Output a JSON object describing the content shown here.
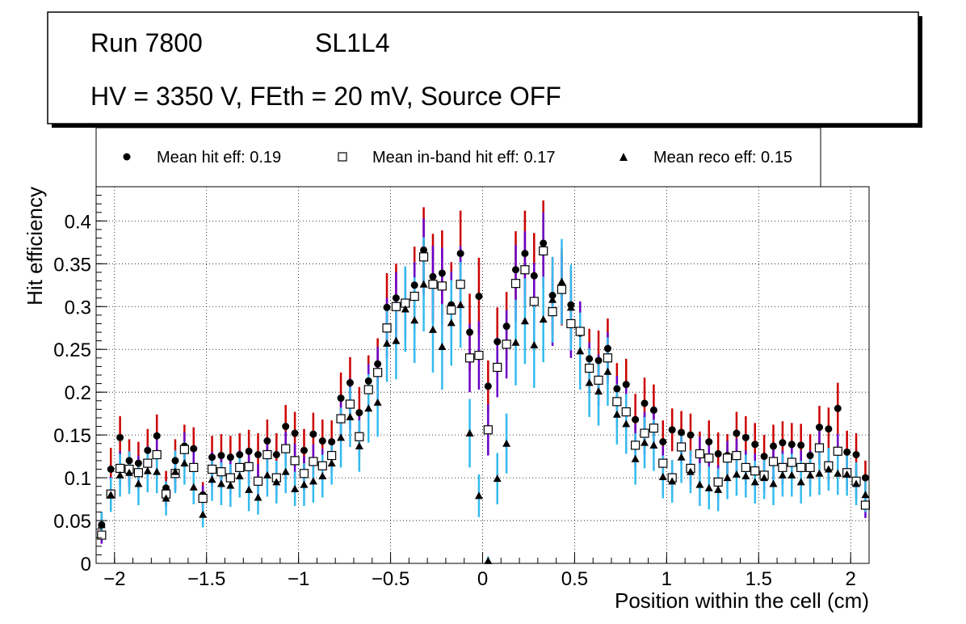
{
  "header": {
    "run_label": "Run 7800",
    "layer_label": "SL1L4",
    "conditions": "HV = 3350 V, FEth = 20 mV, Source OFF"
  },
  "chart_data": {
    "type": "scatter",
    "xlabel": "Position within the cell (cm)",
    "ylabel": "Hit efficiency",
    "xlim": [
      -2.1,
      2.1
    ],
    "ylim": [
      0,
      0.44
    ],
    "grid": true,
    "legend_position": "top",
    "x_ticks": [
      -2,
      -1.5,
      -1,
      -0.5,
      0,
      0.5,
      1,
      1.5,
      2
    ],
    "x_tick_labels": [
      "−2",
      "−1.5",
      "−1",
      "−0.5",
      "0",
      "0.5",
      "1",
      "1.5",
      "2"
    ],
    "y_ticks": [
      0,
      0.05,
      0.1,
      0.15,
      0.2,
      0.25,
      0.3,
      0.35,
      0.4
    ],
    "y_tick_labels": [
      "0",
      "0.05",
      "0.1",
      "0.15",
      "0.2",
      "0.25",
      "0.3",
      "0.35",
      "0.4"
    ],
    "x": [
      -2.07,
      -2.02,
      -1.97,
      -1.92,
      -1.87,
      -1.82,
      -1.77,
      -1.72,
      -1.67,
      -1.62,
      -1.57,
      -1.52,
      -1.47,
      -1.42,
      -1.37,
      -1.32,
      -1.27,
      -1.22,
      -1.17,
      -1.12,
      -1.07,
      -1.02,
      -0.97,
      -0.92,
      -0.87,
      -0.82,
      -0.77,
      -0.72,
      -0.67,
      -0.62,
      -0.57,
      -0.52,
      -0.47,
      -0.42,
      -0.37,
      -0.32,
      -0.27,
      -0.22,
      -0.17,
      -0.12,
      -0.07,
      -0.02,
      0.03,
      0.08,
      0.13,
      0.18,
      0.23,
      0.28,
      0.33,
      0.38,
      0.43,
      0.48,
      0.53,
      0.58,
      0.63,
      0.68,
      0.73,
      0.78,
      0.83,
      0.88,
      0.93,
      0.98,
      1.03,
      1.08,
      1.13,
      1.18,
      1.23,
      1.28,
      1.33,
      1.38,
      1.43,
      1.48,
      1.53,
      1.58,
      1.63,
      1.68,
      1.73,
      1.78,
      1.83,
      1.88,
      1.93,
      1.98,
      2.03,
      2.08
    ],
    "series": [
      {
        "name": "Mean hit  eff: 0.19",
        "marker": "circle",
        "color": "#000000",
        "error_color": "#cc0000",
        "values": [
          0.045,
          0.11,
          0.147,
          0.12,
          0.117,
          0.132,
          0.149,
          0.088,
          0.12,
          0.137,
          0.134,
          0.08,
          0.124,
          0.126,
          0.124,
          0.127,
          0.131,
          0.127,
          0.143,
          0.127,
          0.16,
          0.152,
          0.132,
          0.151,
          0.143,
          0.142,
          0.193,
          0.211,
          0.176,
          0.213,
          0.233,
          0.299,
          0.31,
          0.303,
          0.325,
          0.366,
          0.335,
          0.339,
          0.302,
          0.362,
          0.27,
          0.312,
          0.207,
          0.259,
          0.277,
          0.343,
          0.362,
          0.336,
          0.374,
          0.313,
          0.323,
          0.302,
          0.269,
          0.239,
          0.237,
          0.251,
          0.204,
          0.209,
          0.168,
          0.187,
          0.179,
          0.142,
          0.156,
          0.153,
          0.15,
          0.129,
          0.142,
          0.128,
          0.126,
          0.152,
          0.147,
          0.139,
          0.125,
          0.137,
          0.141,
          0.139,
          0.138,
          0.126,
          0.159,
          0.157,
          0.181,
          0.13,
          0.127,
          0.1
        ],
        "errors": [
          0.015,
          0.025,
          0.025,
          0.025,
          0.025,
          0.025,
          0.025,
          0.02,
          0.025,
          0.025,
          0.025,
          0.015,
          0.025,
          0.025,
          0.025,
          0.025,
          0.025,
          0.025,
          0.025,
          0.025,
          0.025,
          0.025,
          0.025,
          0.025,
          0.025,
          0.025,
          0.03,
          0.03,
          0.03,
          0.03,
          0.03,
          0.04,
          0.04,
          0.04,
          0.045,
          0.05,
          0.05,
          0.05,
          0.05,
          0.05,
          0.045,
          0.045,
          0.03,
          0.04,
          0.04,
          0.045,
          0.05,
          0.05,
          0.05,
          0.045,
          0.045,
          0.04,
          0.035,
          0.035,
          0.035,
          0.035,
          0.03,
          0.03,
          0.03,
          0.03,
          0.03,
          0.025,
          0.025,
          0.025,
          0.025,
          0.025,
          0.025,
          0.025,
          0.025,
          0.025,
          0.025,
          0.025,
          0.025,
          0.025,
          0.025,
          0.025,
          0.025,
          0.025,
          0.025,
          0.025,
          0.03,
          0.025,
          0.025,
          0.02
        ]
      },
      {
        "name": "Mean in-band hit eff: 0.17",
        "marker": "open-square",
        "color": "#000000",
        "error_color": "#6a00c8",
        "values": [
          0.033,
          0.081,
          0.111,
          0.11,
          0.106,
          0.117,
          0.127,
          0.081,
          0.105,
          0.133,
          0.112,
          0.076,
          0.11,
          0.107,
          0.1,
          0.112,
          0.113,
          0.096,
          0.127,
          0.1,
          0.134,
          0.12,
          0.105,
          0.119,
          0.114,
          0.126,
          0.169,
          0.186,
          0.148,
          0.203,
          0.223,
          0.275,
          0.3,
          0.304,
          0.312,
          0.358,
          0.326,
          0.324,
          0.296,
          0.326,
          0.24,
          0.243,
          0.156,
          0.229,
          0.256,
          0.327,
          0.343,
          0.306,
          0.365,
          0.294,
          0.32,
          0.28,
          0.271,
          0.228,
          0.214,
          0.24,
          0.189,
          0.177,
          0.138,
          0.152,
          0.158,
          0.117,
          0.1,
          0.136,
          0.111,
          0.128,
          0.123,
          0.095,
          0.123,
          0.126,
          0.112,
          0.108,
          0.103,
          0.119,
          0.112,
          0.118,
          0.112,
          0.112,
          0.135,
          0.114,
          0.131,
          0.106,
          0.096,
          0.068
        ],
        "errors": [
          0.01,
          0.02,
          0.02,
          0.02,
          0.02,
          0.02,
          0.02,
          0.015,
          0.02,
          0.02,
          0.02,
          0.015,
          0.02,
          0.02,
          0.02,
          0.02,
          0.02,
          0.02,
          0.02,
          0.02,
          0.02,
          0.02,
          0.02,
          0.02,
          0.02,
          0.02,
          0.025,
          0.03,
          0.025,
          0.03,
          0.03,
          0.035,
          0.04,
          0.04,
          0.04,
          0.045,
          0.045,
          0.045,
          0.045,
          0.045,
          0.04,
          0.04,
          0.03,
          0.035,
          0.04,
          0.045,
          0.045,
          0.045,
          0.045,
          0.04,
          0.04,
          0.04,
          0.035,
          0.03,
          0.03,
          0.03,
          0.03,
          0.03,
          0.025,
          0.025,
          0.025,
          0.02,
          0.02,
          0.02,
          0.02,
          0.02,
          0.02,
          0.02,
          0.02,
          0.02,
          0.02,
          0.02,
          0.02,
          0.02,
          0.02,
          0.02,
          0.02,
          0.02,
          0.02,
          0.02,
          0.02,
          0.02,
          0.02,
          0.015
        ]
      },
      {
        "name": "Mean reco eff: 0.15",
        "marker": "triangle",
        "color": "#000000",
        "error_color": "#33bbee",
        "values": [
          0.045,
          0.08,
          0.103,
          0.106,
          0.093,
          0.108,
          0.107,
          0.076,
          0.107,
          0.117,
          0.089,
          0.057,
          0.098,
          0.093,
          0.091,
          0.102,
          0.086,
          0.077,
          0.103,
          0.095,
          0.107,
          0.087,
          0.092,
          0.096,
          0.102,
          0.117,
          0.147,
          0.171,
          0.137,
          0.181,
          0.188,
          0.257,
          0.26,
          0.297,
          0.284,
          0.326,
          0.273,
          0.253,
          0.281,
          0.302,
          0.152,
          0.079,
          0.003,
          0.099,
          0.14,
          0.258,
          0.283,
          0.255,
          0.285,
          0.308,
          0.329,
          0.299,
          0.248,
          0.211,
          0.201,
          0.224,
          0.174,
          0.163,
          0.122,
          0.141,
          0.138,
          0.101,
          0.096,
          0.124,
          0.107,
          0.092,
          0.088,
          0.086,
          0.1,
          0.104,
          0.102,
          0.095,
          0.1,
          0.093,
          0.103,
          0.103,
          0.095,
          0.103,
          0.105,
          0.11,
          0.105,
          0.104,
          0.093,
          0.08
        ],
        "errors": [
          0.015,
          0.02,
          0.025,
          0.025,
          0.025,
          0.025,
          0.025,
          0.02,
          0.025,
          0.025,
          0.02,
          0.015,
          0.025,
          0.025,
          0.025,
          0.025,
          0.025,
          0.02,
          0.025,
          0.025,
          0.025,
          0.02,
          0.025,
          0.025,
          0.025,
          0.025,
          0.035,
          0.035,
          0.03,
          0.04,
          0.04,
          0.045,
          0.045,
          0.05,
          0.05,
          0.055,
          0.05,
          0.05,
          0.05,
          0.05,
          0.04,
          0.025,
          0.005,
          0.03,
          0.035,
          0.05,
          0.05,
          0.05,
          0.05,
          0.05,
          0.05,
          0.05,
          0.045,
          0.04,
          0.04,
          0.04,
          0.035,
          0.035,
          0.03,
          0.03,
          0.03,
          0.025,
          0.025,
          0.03,
          0.025,
          0.025,
          0.025,
          0.025,
          0.025,
          0.025,
          0.025,
          0.025,
          0.025,
          0.025,
          0.025,
          0.025,
          0.025,
          0.025,
          0.025,
          0.025,
          0.025,
          0.025,
          0.025,
          0.02
        ]
      }
    ]
  }
}
